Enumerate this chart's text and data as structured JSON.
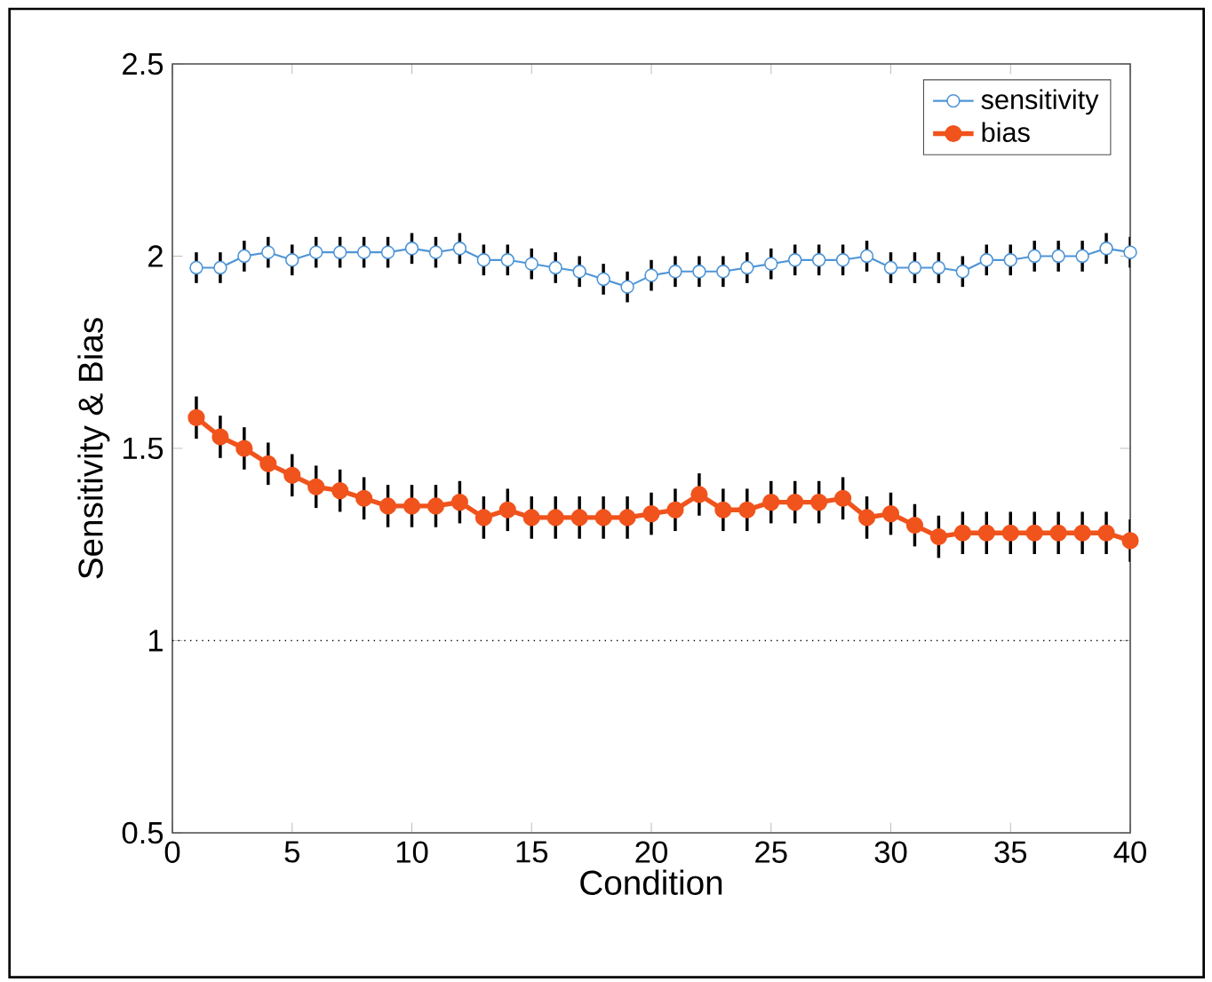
{
  "chart_data": {
    "type": "line",
    "xlabel": "Condition",
    "ylabel": "Sensitivity & Bias",
    "x": [
      1,
      2,
      3,
      4,
      5,
      6,
      7,
      8,
      9,
      10,
      11,
      12,
      13,
      14,
      15,
      16,
      17,
      18,
      19,
      20,
      21,
      22,
      23,
      24,
      25,
      26,
      27,
      28,
      29,
      30,
      31,
      32,
      33,
      34,
      35,
      36,
      37,
      38,
      39,
      40
    ],
    "series": [
      {
        "name": "sensitivity",
        "color": "#4f95d6",
        "marker": "circle",
        "values": [
          1.97,
          1.97,
          2.0,
          2.01,
          1.99,
          2.01,
          2.01,
          2.01,
          2.01,
          2.02,
          2.01,
          2.02,
          1.99,
          1.99,
          1.98,
          1.97,
          1.96,
          1.94,
          1.92,
          1.95,
          1.96,
          1.96,
          1.96,
          1.97,
          1.98,
          1.99,
          1.99,
          1.99,
          2.0,
          1.97,
          1.97,
          1.97,
          1.96,
          1.99,
          1.99,
          2.0,
          2.0,
          2.0,
          2.02,
          2.01
        ],
        "errors": [
          0.04,
          0.04,
          0.04,
          0.04,
          0.04,
          0.04,
          0.04,
          0.04,
          0.04,
          0.04,
          0.04,
          0.04,
          0.04,
          0.04,
          0.04,
          0.04,
          0.04,
          0.04,
          0.04,
          0.04,
          0.04,
          0.04,
          0.04,
          0.04,
          0.04,
          0.04,
          0.04,
          0.04,
          0.04,
          0.04,
          0.04,
          0.04,
          0.04,
          0.04,
          0.04,
          0.04,
          0.04,
          0.04,
          0.04,
          0.04
        ]
      },
      {
        "name": "bias",
        "color": "#f0531c",
        "marker": "circle",
        "values": [
          1.58,
          1.53,
          1.5,
          1.46,
          1.43,
          1.4,
          1.39,
          1.37,
          1.35,
          1.35,
          1.35,
          1.36,
          1.32,
          1.34,
          1.32,
          1.32,
          1.32,
          1.32,
          1.32,
          1.33,
          1.34,
          1.38,
          1.34,
          1.34,
          1.36,
          1.36,
          1.36,
          1.37,
          1.32,
          1.33,
          1.3,
          1.27,
          1.28,
          1.28,
          1.28,
          1.28,
          1.28,
          1.28,
          1.28,
          1.26
        ],
        "errors": [
          0.055,
          0.055,
          0.055,
          0.055,
          0.055,
          0.055,
          0.055,
          0.055,
          0.055,
          0.055,
          0.055,
          0.055,
          0.055,
          0.055,
          0.055,
          0.055,
          0.055,
          0.055,
          0.055,
          0.055,
          0.055,
          0.055,
          0.055,
          0.055,
          0.055,
          0.055,
          0.055,
          0.055,
          0.055,
          0.055,
          0.055,
          0.055,
          0.055,
          0.055,
          0.055,
          0.055,
          0.055,
          0.055,
          0.055,
          0.055
        ]
      }
    ],
    "xlim": [
      0,
      40
    ],
    "xticks": [
      0,
      5,
      10,
      15,
      20,
      25,
      30,
      35,
      40
    ],
    "ylim": [
      0.5,
      2.5
    ],
    "yticks": [
      0.5,
      1,
      1.5,
      2,
      2.5
    ],
    "ref_lines": [
      {
        "axis": "y",
        "value": 1,
        "color": "#000000",
        "line_style": "dotted"
      }
    ],
    "grid": false,
    "legend": "top right"
  }
}
